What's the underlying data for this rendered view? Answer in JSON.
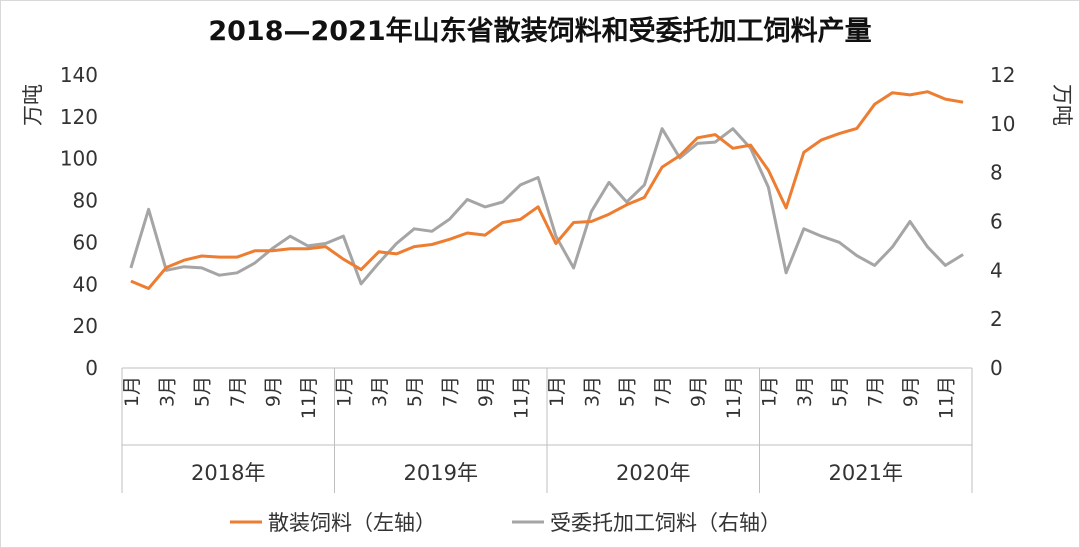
{
  "chart_data": {
    "type": "line",
    "title": "2018—2021年山东省散装饲料和受委托加工饲料产量",
    "ylabel_left": "万吨",
    "ylabel_right": "万吨",
    "ylim_left": [
      0,
      140
    ],
    "yticks_left": [
      "0",
      "20",
      "40",
      "60",
      "80",
      "100",
      "120",
      "140"
    ],
    "ylim_right": [
      0,
      12
    ],
    "yticks_right": [
      "0",
      "2",
      "4",
      "6",
      "8",
      "10",
      "12"
    ],
    "month_labels": [
      "1月",
      "3月",
      "5月",
      "7月",
      "9月",
      "11月"
    ],
    "years": [
      "2018年",
      "2019年",
      "2020年",
      "2021年"
    ],
    "legend_position": "bottom",
    "grid": false,
    "series": [
      {
        "name": "散装饲料（左轴）",
        "axis": "left",
        "color": "#ED7D31",
        "values": [
          41.5,
          38.0,
          48.0,
          51.5,
          53.5,
          53.0,
          53.0,
          56.0,
          56.0,
          57.0,
          57.0,
          58.0,
          52.0,
          47.0,
          55.5,
          54.5,
          58.0,
          59.0,
          61.5,
          64.5,
          63.5,
          69.5,
          71.0,
          77.0,
          59.5,
          69.5,
          70.0,
          73.5,
          78.0,
          81.5,
          96.0,
          101.5,
          110.0,
          111.5,
          105.0,
          106.5,
          94.5,
          76.5,
          103.0,
          109.0,
          112.0,
          114.5,
          126.0,
          131.5,
          130.5,
          132.0,
          128.5,
          127.0
        ]
      },
      {
        "name": "受委托加工饲料（右轴）",
        "axis": "right",
        "color": "#A5A5A5",
        "values": [
          4.1,
          6.5,
          4.0,
          4.15,
          4.1,
          3.8,
          3.9,
          4.3,
          4.9,
          5.4,
          5.0,
          5.1,
          5.4,
          3.45,
          4.3,
          5.1,
          5.7,
          5.6,
          6.1,
          6.9,
          6.6,
          6.8,
          7.5,
          7.8,
          5.4,
          4.1,
          6.4,
          7.6,
          6.8,
          7.5,
          9.8,
          8.6,
          9.2,
          9.25,
          9.8,
          9.0,
          7.4,
          3.9,
          5.7,
          5.4,
          5.15,
          4.6,
          4.2,
          4.95,
          6.0,
          4.95,
          4.2,
          4.65
        ]
      }
    ]
  }
}
